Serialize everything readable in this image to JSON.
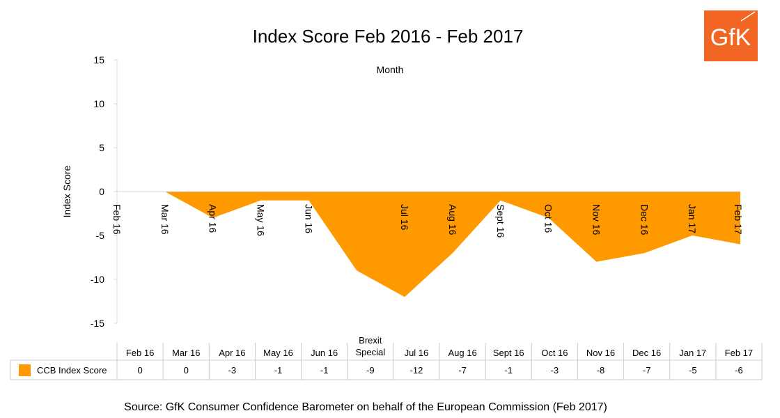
{
  "chart_data": {
    "type": "area",
    "title": "Index Score Feb 2016 - Feb 2017",
    "xlabel": "Month",
    "ylabel": "Index Score",
    "ylim": [
      -15,
      15
    ],
    "yticks": [
      15,
      10,
      5,
      0,
      -5,
      -10,
      -15
    ],
    "grid": false,
    "categories": [
      "Feb 16",
      "Mar 16",
      "Apr 16",
      "May 16",
      "Jun 16",
      "Brexit Special",
      "Jul 16",
      "Aug 16",
      "Sept 16",
      "Oct 16",
      "Nov 16",
      "Dec 16",
      "Jan 17",
      "Feb 17"
    ],
    "category_axis_labels": [
      "Feb 16",
      "Mar 16",
      "Apr 16",
      "May 16",
      "Jun 16",
      "",
      "Jul 16",
      "Aug 16",
      "Sept 16",
      "Oct 16",
      "Nov 16",
      "Dec 16",
      "Jan 17",
      "Feb 17"
    ],
    "table_headers": [
      "Feb 16",
      "Mar 16",
      "Apr 16",
      "May 16",
      "Jun 16",
      "Brexit\nSpecial",
      "Jul 16",
      "Aug 16",
      "Sept 16",
      "Oct 16",
      "Nov 16",
      "Dec 16",
      "Jan 17",
      "Feb 17"
    ],
    "series": [
      {
        "name": "CCB Index Score",
        "values": [
          0,
          0,
          -3,
          -1,
          -1,
          -9,
          -12,
          -7,
          -1,
          -3,
          -8,
          -7,
          -5,
          -6
        ],
        "color": "#FF9900"
      }
    ],
    "legend": "data-table-left"
  },
  "source": "Source: GfK Consumer Confidence Barometer on behalf of the European Commission (Feb 2017)",
  "logo": {
    "text": "GfK",
    "color": "#F26522"
  }
}
